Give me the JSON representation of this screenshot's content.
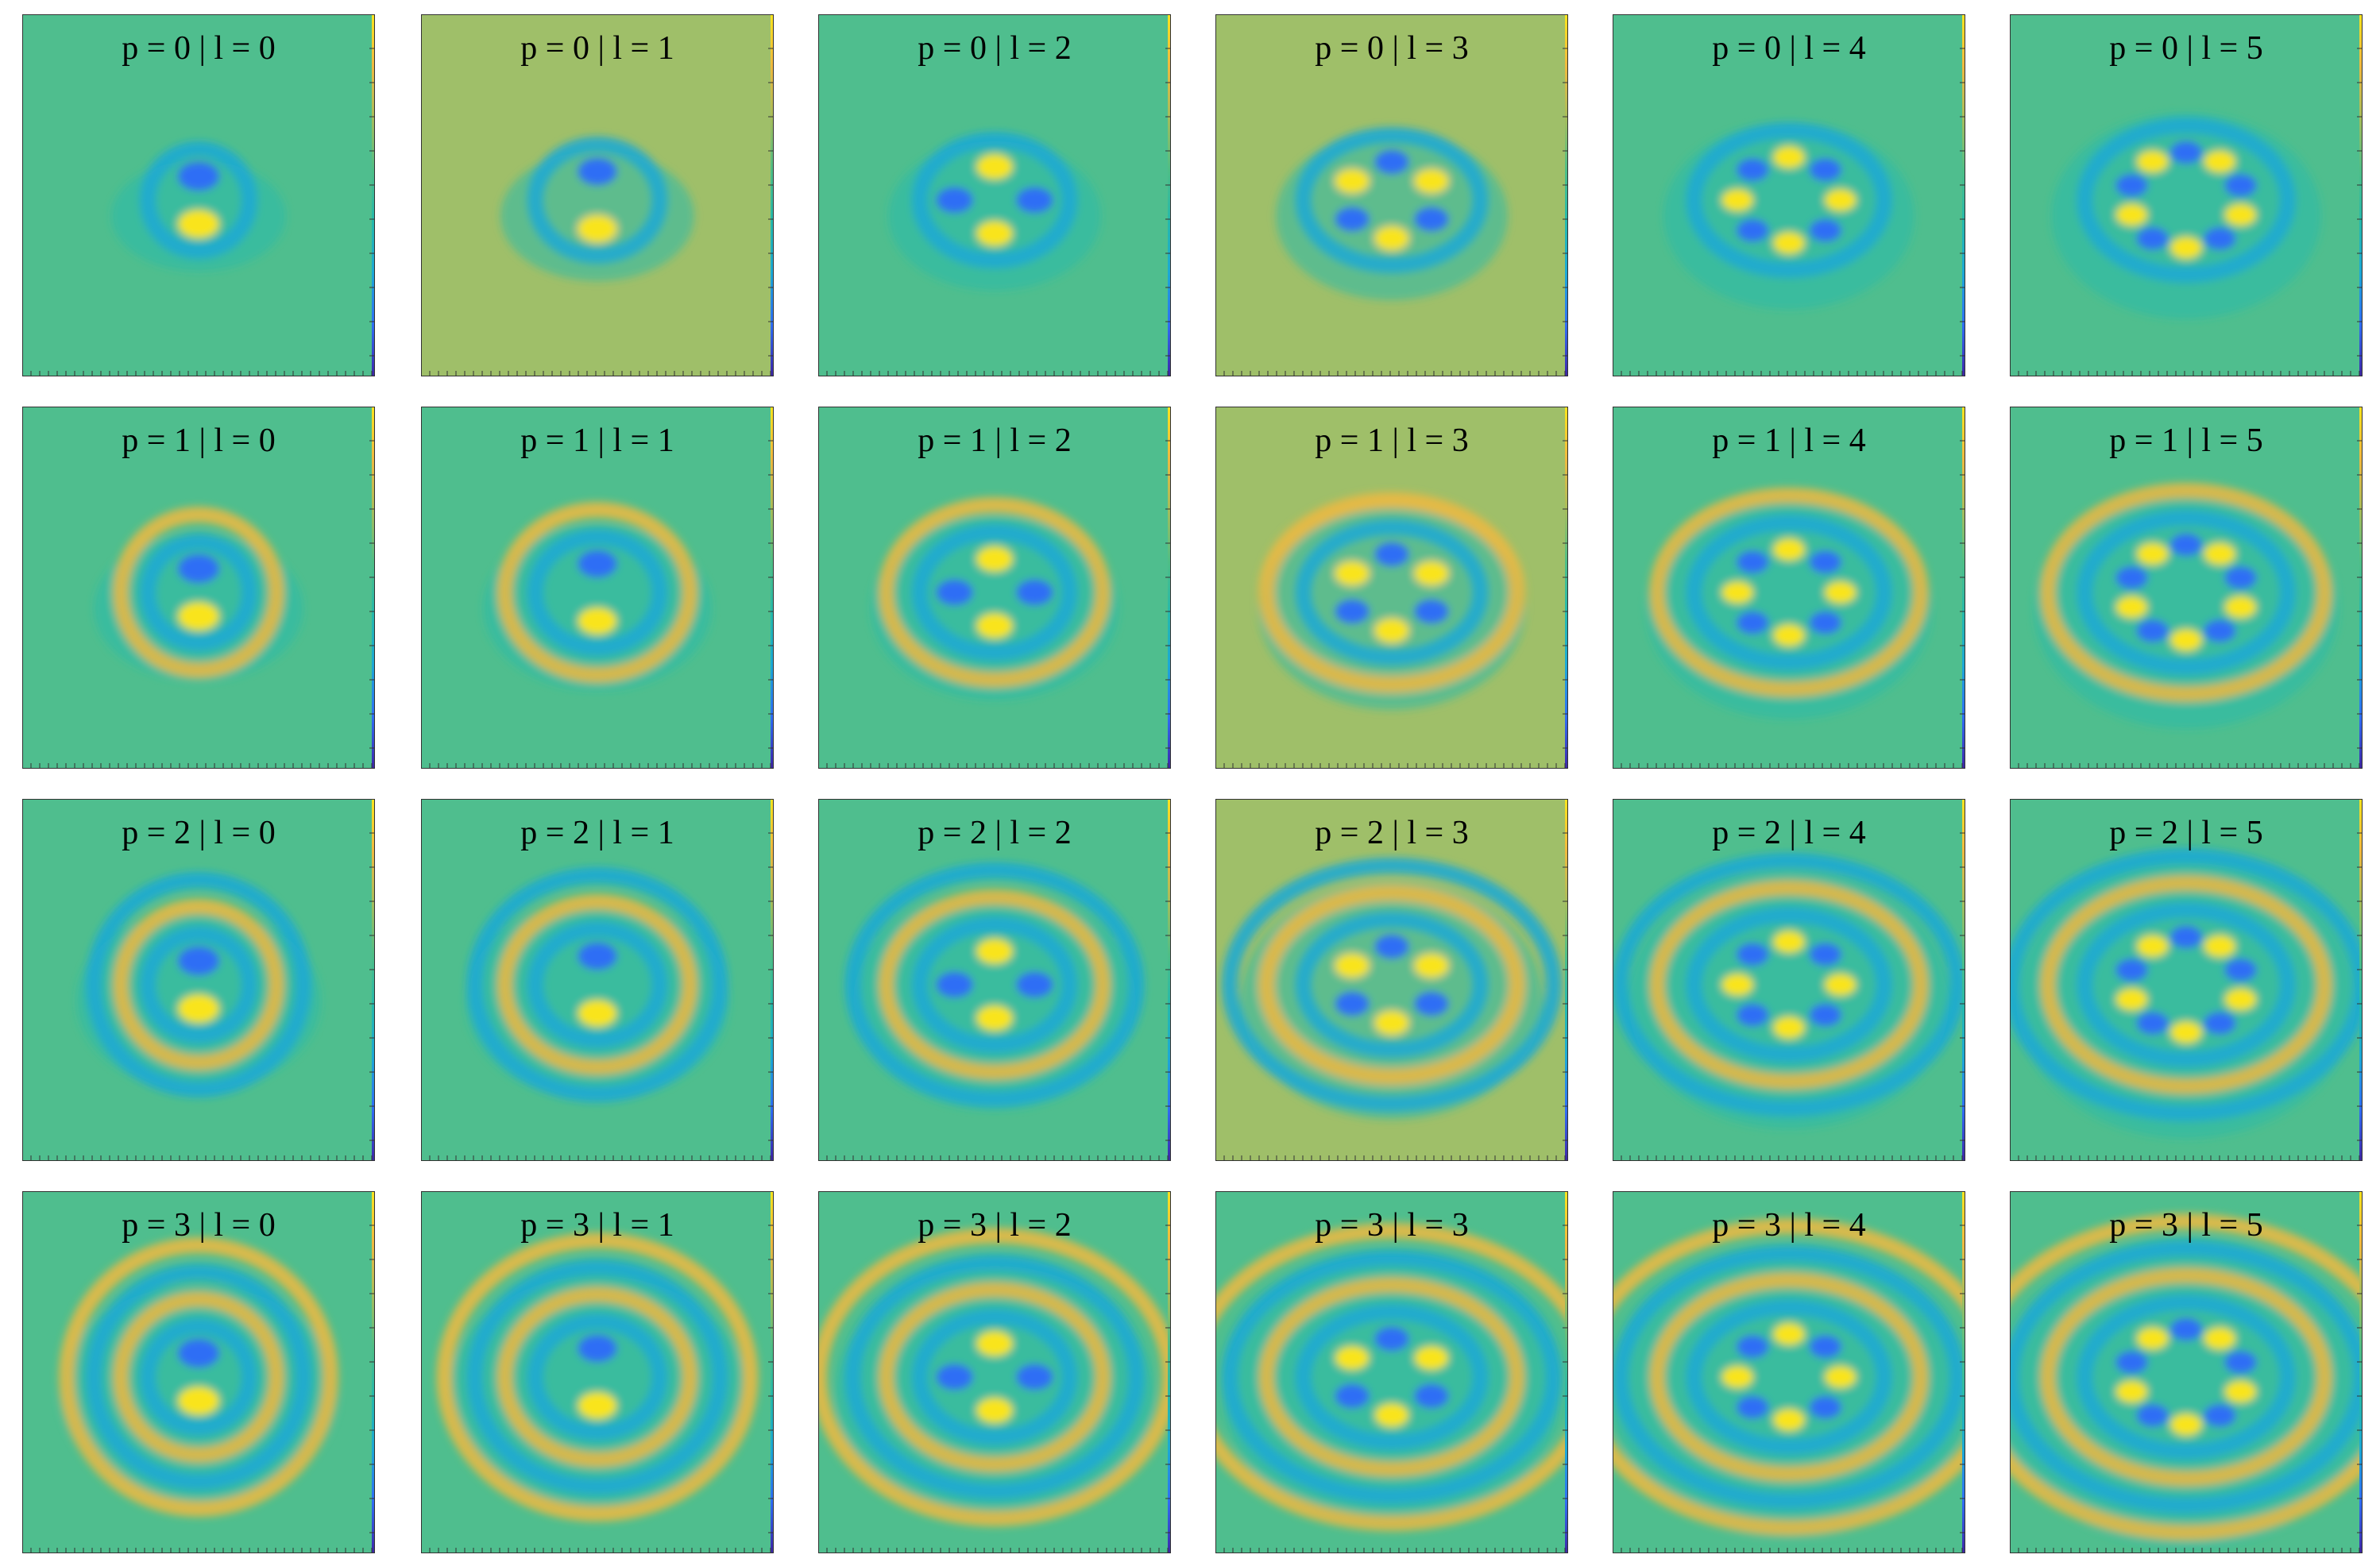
{
  "chart_data": {
    "type": "heatmap",
    "rows": 4,
    "cols": 6,
    "colormap": [
      "#3e26a8",
      "#2f6ef5",
      "#1ba9d6",
      "#25b9ac",
      "#4fbe86",
      "#a6bd5b",
      "#f0b93f",
      "#f9e41e"
    ],
    "background_color": "#4fbe8e",
    "panels": [
      {
        "p": 0,
        "l": 0,
        "title": "p = 0 | l = 0"
      },
      {
        "p": 0,
        "l": 1,
        "title": "p = 0 | l = 1"
      },
      {
        "p": 0,
        "l": 2,
        "title": "p = 0 | l = 2"
      },
      {
        "p": 0,
        "l": 3,
        "title": "p = 0 | l = 3"
      },
      {
        "p": 0,
        "l": 4,
        "title": "p = 0 | l = 4"
      },
      {
        "p": 0,
        "l": 5,
        "title": "p = 0 | l = 5"
      },
      {
        "p": 1,
        "l": 0,
        "title": "p = 1 | l = 0"
      },
      {
        "p": 1,
        "l": 1,
        "title": "p = 1 | l = 1"
      },
      {
        "p": 1,
        "l": 2,
        "title": "p = 1 | l = 2"
      },
      {
        "p": 1,
        "l": 3,
        "title": "p = 1 | l = 3"
      },
      {
        "p": 1,
        "l": 4,
        "title": "p = 1 | l = 4"
      },
      {
        "p": 1,
        "l": 5,
        "title": "p = 1 | l = 5"
      },
      {
        "p": 2,
        "l": 0,
        "title": "p = 2 | l = 0"
      },
      {
        "p": 2,
        "l": 1,
        "title": "p = 2 | l = 1"
      },
      {
        "p": 2,
        "l": 2,
        "title": "p = 2 | l = 2"
      },
      {
        "p": 2,
        "l": 3,
        "title": "p = 2 | l = 3"
      },
      {
        "p": 2,
        "l": 4,
        "title": "p = 2 | l = 4"
      },
      {
        "p": 2,
        "l": 5,
        "title": "p = 2 | l = 5"
      },
      {
        "p": 3,
        "l": 0,
        "title": "p = 3 | l = 0"
      },
      {
        "p": 3,
        "l": 1,
        "title": "p = 3 | l = 1"
      },
      {
        "p": 3,
        "l": 2,
        "title": "p = 3 | l = 2"
      },
      {
        "p": 3,
        "l": 3,
        "title": "p = 3 | l = 3"
      },
      {
        "p": 3,
        "l": 4,
        "title": "p = 3 | l = 4"
      },
      {
        "p": 3,
        "l": 5,
        "title": "p = 3 | l = 5"
      }
    ]
  }
}
